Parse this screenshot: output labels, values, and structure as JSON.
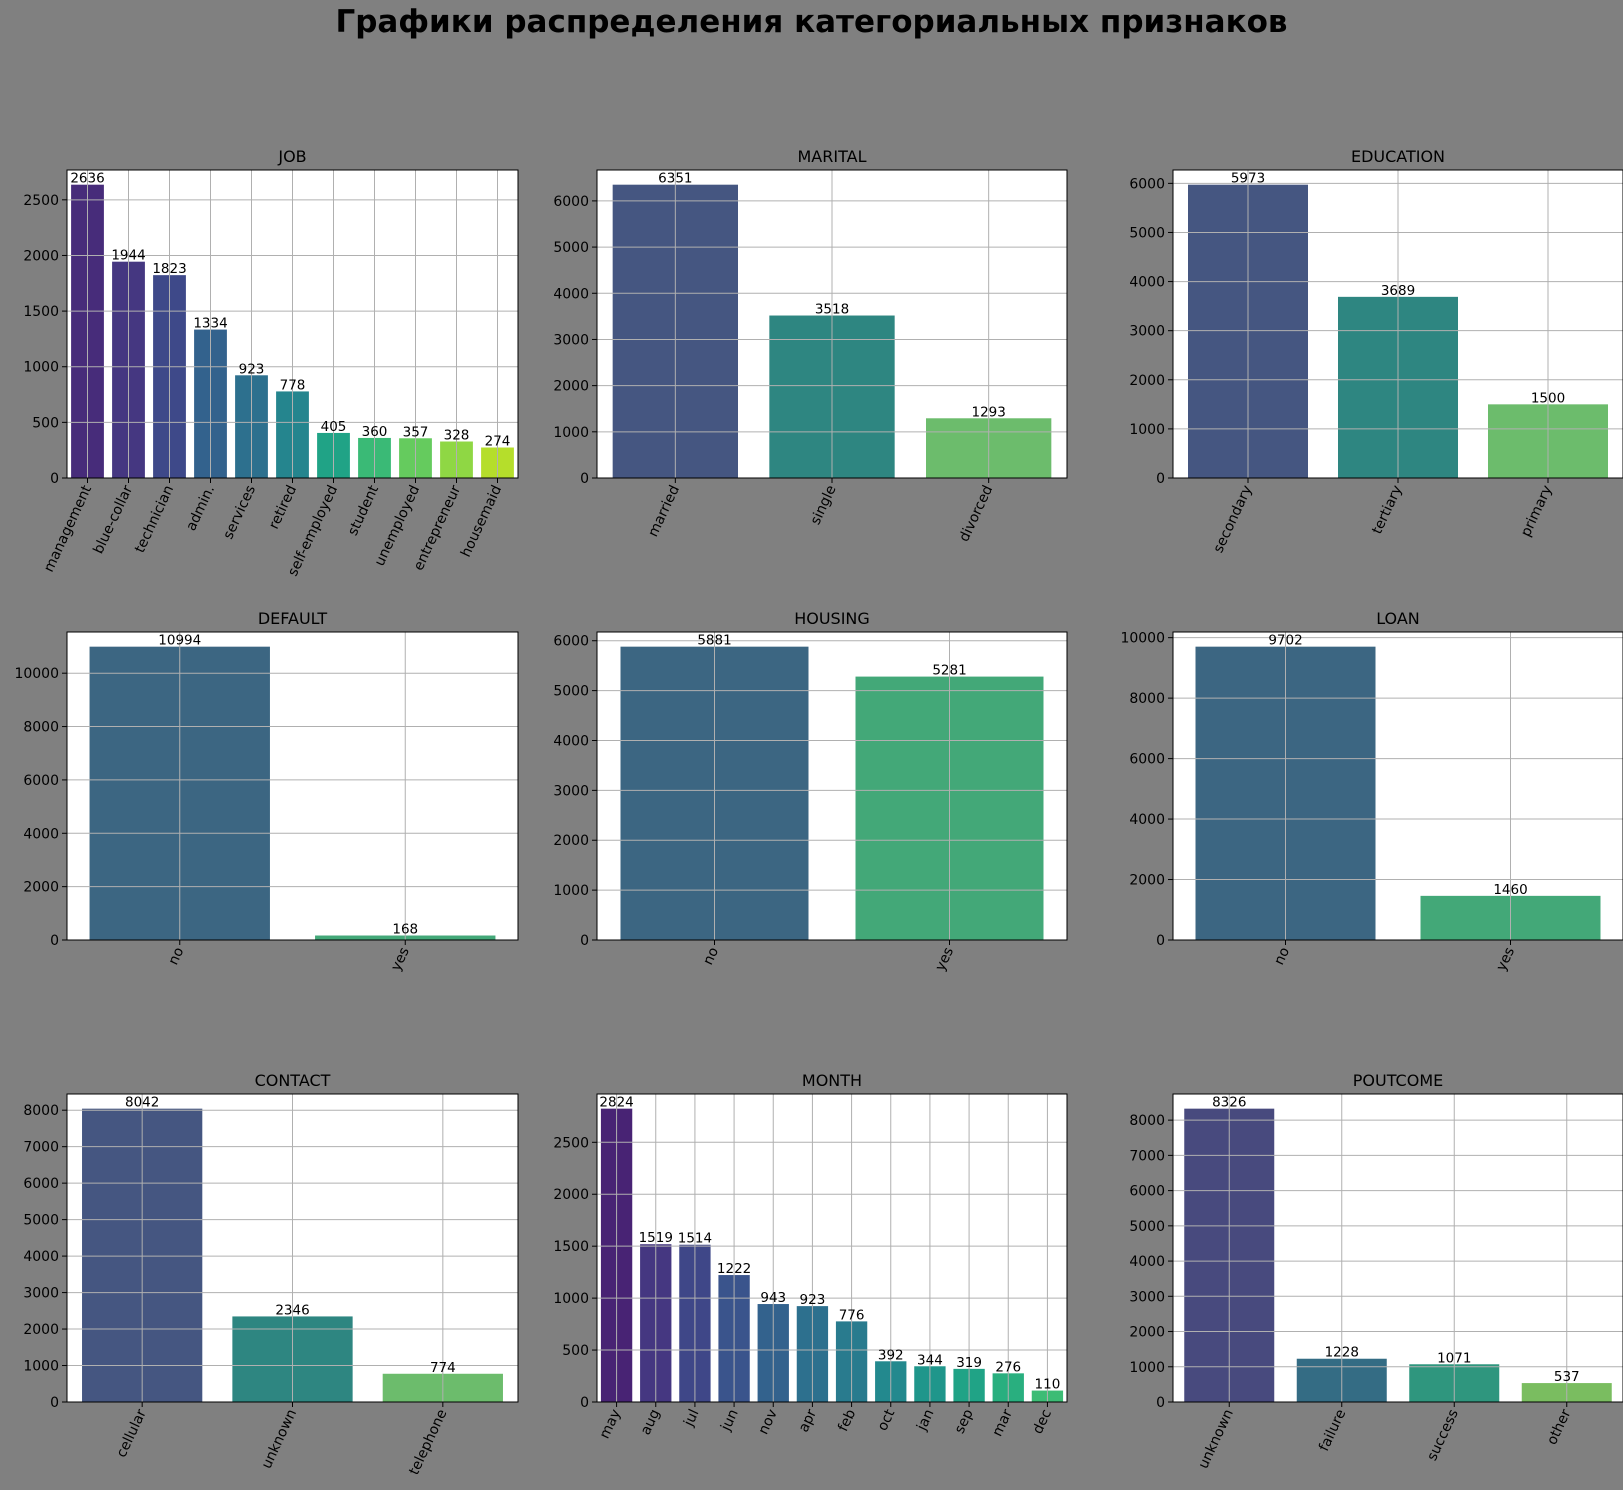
{
  "figure_title": "Графики распределения категориальных признаков",
  "colors": {
    "figure_bg": "#808080",
    "axes_bg": "#ffffff",
    "grid": "#b0b0b0"
  },
  "chart_data": [
    {
      "type": "bar",
      "title": "JOB",
      "categories": [
        "management",
        "blue-collar",
        "technician",
        "admin.",
        "services",
        "retired",
        "self-employed",
        "student",
        "unemployed",
        "entrepreneur",
        "housemaid"
      ],
      "values": [
        2636,
        1944,
        1823,
        1334,
        923,
        778,
        405,
        360,
        357,
        328,
        274
      ],
      "yticks": [
        0,
        500,
        1000,
        1500,
        2000,
        2500
      ],
      "ylim": [
        0,
        2768
      ],
      "colors": [
        "#472c7a",
        "#453781",
        "#3e4989",
        "#33628d",
        "#2d708e",
        "#25858e",
        "#20a386",
        "#3aba76",
        "#65cb5e",
        "#8fd744",
        "#b5de2b"
      ],
      "grid": true
    },
    {
      "type": "bar",
      "title": "MARITAL",
      "categories": [
        "married",
        "single",
        "divorced"
      ],
      "values": [
        6351,
        3518,
        1293
      ],
      "yticks": [
        0,
        1000,
        2000,
        3000,
        4000,
        5000,
        6000
      ],
      "ylim": [
        0,
        6669
      ],
      "colors": [
        "#455681",
        "#2e8681",
        "#6cbc6c"
      ],
      "grid": true
    },
    {
      "type": "bar",
      "title": "EDUCATION",
      "categories": [
        "secondary",
        "tertiary",
        "primary"
      ],
      "values": [
        5973,
        3689,
        1500
      ],
      "yticks": [
        0,
        1000,
        2000,
        3000,
        4000,
        5000,
        6000
      ],
      "ylim": [
        0,
        6272
      ],
      "colors": [
        "#455681",
        "#2e8681",
        "#6cbc6c"
      ],
      "grid": true
    },
    {
      "type": "bar",
      "title": "DEFAULT",
      "categories": [
        "no",
        "yes"
      ],
      "values": [
        10994,
        168
      ],
      "yticks": [
        0,
        2000,
        4000,
        6000,
        8000,
        10000
      ],
      "ylim": [
        0,
        11544
      ],
      "colors": [
        "#3c6682",
        "#43a878"
      ],
      "grid": true
    },
    {
      "type": "bar",
      "title": "HOUSING",
      "categories": [
        "no",
        "yes"
      ],
      "values": [
        5881,
        5281
      ],
      "yticks": [
        0,
        1000,
        2000,
        3000,
        4000,
        5000,
        6000
      ],
      "ylim": [
        0,
        6175
      ],
      "colors": [
        "#3c6682",
        "#43a878"
      ],
      "grid": true
    },
    {
      "type": "bar",
      "title": "LOAN",
      "categories": [
        "no",
        "yes"
      ],
      "values": [
        9702,
        1460
      ],
      "yticks": [
        0,
        2000,
        4000,
        6000,
        8000,
        10000
      ],
      "ylim": [
        0,
        10187
      ],
      "colors": [
        "#3c6682",
        "#43a878"
      ],
      "grid": true
    },
    {
      "type": "bar",
      "title": "CONTACT",
      "categories": [
        "cellular",
        "unknown",
        "telephone"
      ],
      "values": [
        8042,
        2346,
        774
      ],
      "yticks": [
        0,
        1000,
        2000,
        3000,
        4000,
        5000,
        6000,
        7000,
        8000
      ],
      "ylim": [
        0,
        8444
      ],
      "colors": [
        "#455681",
        "#2e8681",
        "#6cbc6c"
      ],
      "grid": true
    },
    {
      "type": "bar",
      "title": "MONTH",
      "categories": [
        "may",
        "aug",
        "jul",
        "jun",
        "nov",
        "apr",
        "feb",
        "oct",
        "jan",
        "sep",
        "mar",
        "dec"
      ],
      "values": [
        2824,
        1519,
        1514,
        1222,
        943,
        923,
        776,
        392,
        344,
        319,
        276,
        110
      ],
      "yticks": [
        0,
        500,
        1000,
        1500,
        2000,
        2500
      ],
      "ylim": [
        0,
        2965
      ],
      "colors": [
        "#482374",
        "#453781",
        "#3f4788",
        "#3a548c",
        "#33628d",
        "#2d708e",
        "#297b8e",
        "#23898e",
        "#1f968b",
        "#20a386",
        "#29af7f",
        "#3cbc75"
      ],
      "grid": true
    },
    {
      "type": "bar",
      "title": "POUTCOME",
      "categories": [
        "unknown",
        "failure",
        "success",
        "other"
      ],
      "values": [
        8326,
        1228,
        1071,
        537
      ],
      "yticks": [
        0,
        1000,
        2000,
        3000,
        4000,
        5000,
        6000,
        7000,
        8000
      ],
      "ylim": [
        0,
        8742
      ],
      "colors": [
        "#484a7e",
        "#346c84",
        "#2f967e",
        "#7abd60"
      ],
      "grid": true
    }
  ]
}
